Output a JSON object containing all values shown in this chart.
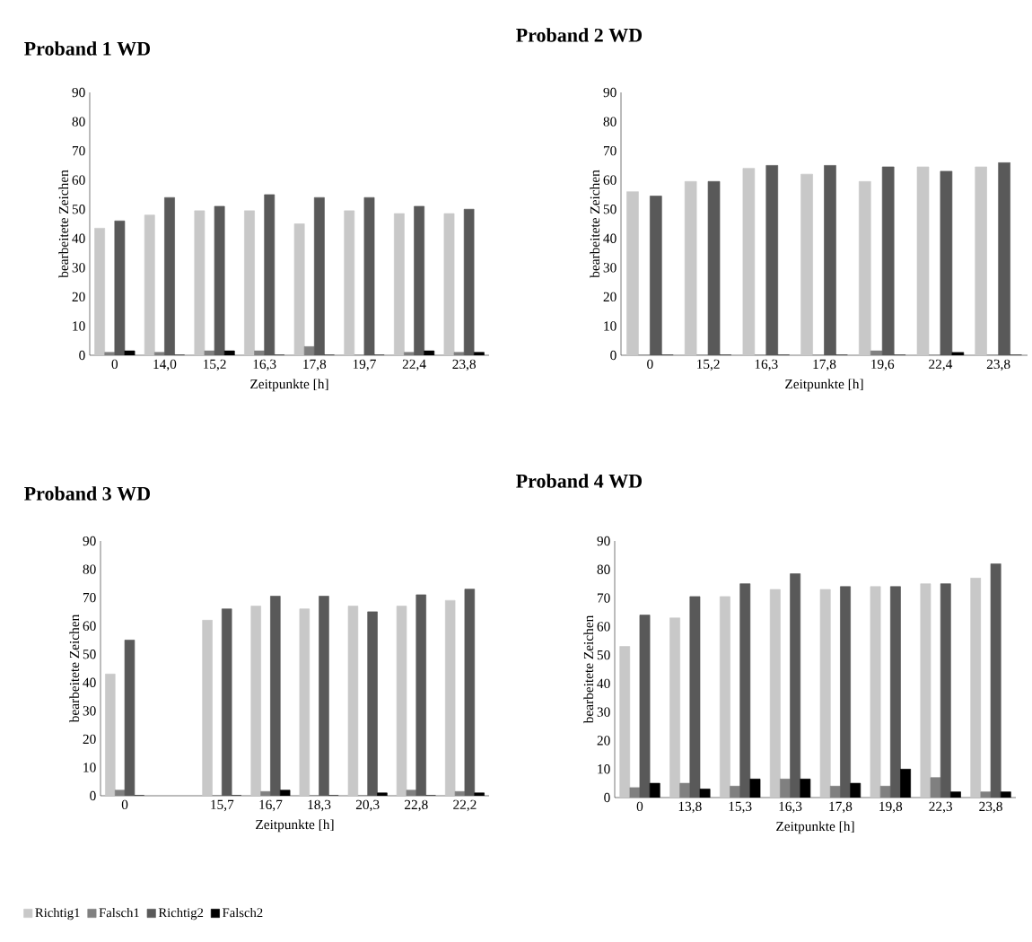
{
  "chart_data": [
    {
      "type": "bar",
      "title": "**Proband 1 WD**",
      "xlabel": "Zeitpunkte [h]",
      "ylabel": "bearbeitete Zeichen",
      "categories": [
        "0",
        "14,0",
        "15,2",
        "16,3",
        "17,8",
        "19,7",
        "22,4",
        "23,8"
      ],
      "ylim": [
        0,
        90
      ],
      "yticks": [
        0,
        10,
        20,
        30,
        40,
        50,
        60,
        70,
        80,
        90
      ],
      "series": [
        {
          "color": "#c8c8c8",
          "values": [
            43.5,
            48,
            49.5,
            49.5,
            45,
            49.5,
            48.5,
            48.5
          ]
        },
        {
          "color": "#808080",
          "values": [
            1,
            1,
            1.5,
            1.5,
            3,
            0,
            1,
            1
          ]
        },
        {
          "color": "#595959",
          "values": [
            46,
            54,
            51,
            55,
            54,
            54,
            51,
            50
          ]
        },
        {
          "color": "#000000",
          "values": [
            1.5,
            0,
            1.5,
            0,
            0,
            0,
            1.5,
            1
          ]
        }
      ]
    },
    {
      "type": "bar",
      "title": "**Proband 2 WD**",
      "xlabel": "Zeitpunkte [h]",
      "ylabel": "bearbeitete Zeichen",
      "categories": [
        "0",
        "15,2",
        "16,3",
        "17,8",
        "19,6",
        "22,4",
        "23,8"
      ],
      "ylim": [
        0,
        90
      ],
      "yticks": [
        0,
        10,
        20,
        30,
        40,
        50,
        60,
        70,
        80,
        90
      ],
      "series": [
        {
          "color": "#c8c8c8",
          "values": [
            56,
            59.5,
            64,
            62,
            59.5,
            64.5,
            64.5
          ]
        },
        {
          "color": "#808080",
          "values": [
            0,
            0,
            0,
            0,
            1.5,
            0,
            0
          ]
        },
        {
          "color": "#595959",
          "values": [
            54.5,
            59.5,
            65,
            65,
            64.5,
            63,
            66
          ]
        },
        {
          "color": "#000000",
          "values": [
            0,
            0,
            0,
            0,
            0,
            1,
            0
          ]
        }
      ]
    },
    {
      "type": "bar",
      "title": "**Proband 3 WD**",
      "xlabel": "Zeitpunkte [h]",
      "ylabel": "bearbeitete Zeichen",
      "categories": [
        "0",
        null,
        "15,7",
        "16,7",
        "18,3",
        "20,3",
        "22,8",
        "22,2"
      ],
      "ylim": [
        0,
        90
      ],
      "yticks": [
        0,
        10,
        20,
        30,
        40,
        50,
        60,
        70,
        80,
        90
      ],
      "legend": "bottom",
      "series": [
        {
          "name": "Richtig1",
          "color": "#c8c8c8",
          "values": [
            43,
            null,
            62,
            67,
            66,
            67,
            67,
            69
          ]
        },
        {
          "name": "Falsch1",
          "color": "#808080",
          "values": [
            2,
            null,
            0,
            1.5,
            0,
            0,
            2,
            1.5
          ]
        },
        {
          "name": "Richtig2",
          "color": "#595959",
          "values": [
            55,
            null,
            66,
            70.5,
            70.5,
            65,
            71,
            73
          ]
        },
        {
          "name": "Falsch2",
          "color": "#000000",
          "values": [
            0,
            null,
            0,
            2,
            0,
            1,
            0,
            1
          ]
        }
      ]
    },
    {
      "type": "bar",
      "title": "**Proband 4 WD**",
      "xlabel": "Zeitpunkte [h]",
      "ylabel": "bearbeitete Zeichen",
      "categories": [
        "0",
        "13,8",
        "15,3",
        "16,3",
        "17,8",
        "19,8",
        "22,3",
        "23,8"
      ],
      "ylim": [
        0,
        90
      ],
      "yticks": [
        0,
        10,
        20,
        30,
        40,
        50,
        60,
        70,
        80,
        90
      ],
      "series": [
        {
          "color": "#c8c8c8",
          "values": [
            53,
            63,
            70.5,
            73,
            73,
            74,
            75,
            77
          ]
        },
        {
          "color": "#808080",
          "values": [
            3.5,
            5,
            4,
            6.5,
            4,
            4,
            7,
            2
          ]
        },
        {
          "color": "#595959",
          "values": [
            64,
            70.5,
            75,
            78.5,
            74,
            74,
            75,
            82
          ]
        },
        {
          "color": "#000000",
          "values": [
            5,
            3,
            6.5,
            6.5,
            5,
            10,
            2,
            2
          ]
        }
      ]
    }
  ]
}
